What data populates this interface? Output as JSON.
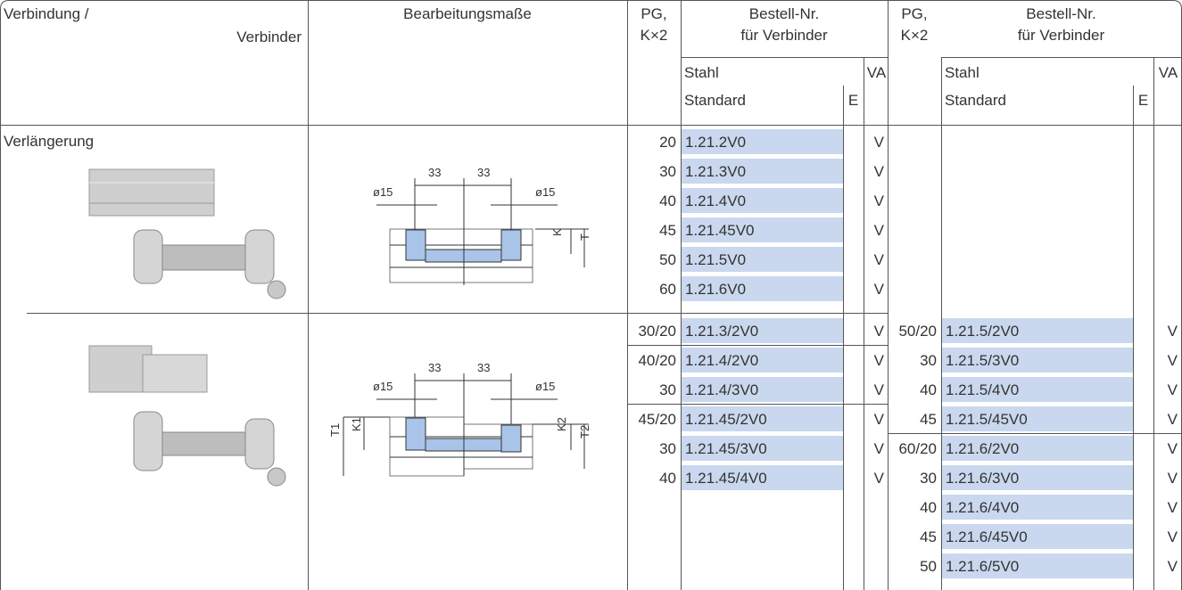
{
  "header": {
    "col1": [
      "Verbindung /",
      "Verbinder"
    ],
    "col2": "Bearbeitungsmaße",
    "group_left": {
      "pg": [
        "PG,",
        "K×2"
      ],
      "order": [
        "Bestell-Nr.",
        "für Verbinder"
      ],
      "stahl": "Stahl",
      "standard": "Standard",
      "e": "E",
      "va": "VA"
    },
    "group_right": {
      "pg": [
        "PG,",
        "K×2"
      ],
      "order": [
        "Bestell-Nr.",
        "für Verbinder"
      ],
      "stahl": "Stahl",
      "standard": "Standard",
      "e": "E",
      "va": "VA"
    }
  },
  "sections": [
    {
      "label": "Verlängerung",
      "drawing_labels": [
        "ø15",
        "33",
        "33",
        "ø15",
        "K",
        "T"
      ],
      "left": [
        {
          "pg": "20",
          "order": "1.21.2V0",
          "va": "V"
        },
        {
          "pg": "30",
          "order": "1.21.3V0",
          "va": "V"
        },
        {
          "pg": "40",
          "order": "1.21.4V0",
          "va": "V"
        },
        {
          "pg": "45",
          "order": "1.21.45V0",
          "va": "V"
        },
        {
          "pg": "50",
          "order": "1.21.5V0",
          "va": "V"
        },
        {
          "pg": "60",
          "order": "1.21.6V0",
          "va": "V"
        }
      ],
      "right": []
    },
    {
      "drawing_labels": [
        "ø15",
        "33",
        "33",
        "ø15",
        "T1",
        "K1",
        "K2",
        "T2"
      ],
      "left": [
        {
          "pg": "30/20",
          "order": "1.21.3/2V0",
          "va": "V"
        },
        {
          "pg": "40/20",
          "order": "1.21.4/2V0",
          "va": "V"
        },
        {
          "pg": "30",
          "order": "1.21.4/3V0",
          "va": "V"
        },
        {
          "pg": "45/20",
          "order": "1.21.45/2V0",
          "va": "V"
        },
        {
          "pg": "30",
          "order": "1.21.45/3V0",
          "va": "V"
        },
        {
          "pg": "40",
          "order": "1.21.45/4V0",
          "va": "V"
        }
      ],
      "right": [
        {
          "pg": "50/20",
          "order": "1.21.5/2V0",
          "va": "V"
        },
        {
          "pg": "30",
          "order": "1.21.5/3V0",
          "va": "V"
        },
        {
          "pg": "40",
          "order": "1.21.5/4V0",
          "va": "V"
        },
        {
          "pg": "45",
          "order": "1.21.5/45V0",
          "va": "V"
        },
        {
          "pg": "60/20",
          "order": "1.21.6/2V0",
          "va": "V"
        },
        {
          "pg": "30",
          "order": "1.21.6/3V0",
          "va": "V"
        },
        {
          "pg": "40",
          "order": "1.21.6/4V0",
          "va": "V"
        },
        {
          "pg": "45",
          "order": "1.21.6/45V0",
          "va": "V"
        },
        {
          "pg": "50",
          "order": "1.21.6/5V0",
          "va": "V"
        }
      ]
    }
  ]
}
